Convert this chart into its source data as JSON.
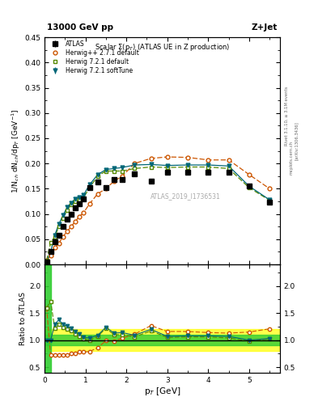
{
  "title_top": "13000 GeV pp",
  "title_right": "Z+Jet",
  "plot_title": "Scalar Σ(p$_T$) (ATLAS UE in Z production)",
  "watermark": "ATLAS_2019_I1736531",
  "ylabel_main": "1/N$_{ch}$ dN$_{ch}$/dp$_T$ [GeV$^{-1}$]",
  "ylabel_ratio": "Ratio to ATLAS",
  "xlabel": "p$_T$ [GeV]",
  "right_label": "Rivet 3.1.10, ≥ 3.1M events",
  "arxiv_label": "[arXiv:1306.3436]",
  "mcplots_label": "mcplots.cern.ch",
  "ylim_main": [
    0.0,
    0.45
  ],
  "xlim": [
    0.0,
    5.75
  ],
  "yticks_main": [
    0.0,
    0.05,
    0.1,
    0.15,
    0.2,
    0.25,
    0.3,
    0.35,
    0.4,
    0.45
  ],
  "ylim_ratio": [
    0.4,
    2.4
  ],
  "yticks_ratio": [
    0.5,
    1.0,
    1.5,
    2.0
  ],
  "atlas_x": [
    0.05,
    0.15,
    0.25,
    0.35,
    0.45,
    0.55,
    0.65,
    0.75,
    0.85,
    0.95,
    1.1,
    1.3,
    1.5,
    1.7,
    1.9,
    2.2,
    2.6,
    3.0,
    3.5,
    4.0,
    4.5,
    5.0,
    5.5
  ],
  "atlas_y": [
    0.005,
    0.025,
    0.045,
    0.058,
    0.075,
    0.09,
    0.1,
    0.112,
    0.12,
    0.13,
    0.152,
    0.163,
    0.152,
    0.168,
    0.168,
    0.18,
    0.165,
    0.183,
    0.182,
    0.182,
    0.183,
    0.155,
    0.124
  ],
  "atlas_yerr": [
    0.002,
    0.003,
    0.003,
    0.003,
    0.003,
    0.003,
    0.003,
    0.003,
    0.003,
    0.003,
    0.003,
    0.003,
    0.003,
    0.003,
    0.003,
    0.003,
    0.003,
    0.003,
    0.003,
    0.003,
    0.003,
    0.003,
    0.003
  ],
  "herwig_pp_x": [
    0.05,
    0.15,
    0.25,
    0.35,
    0.45,
    0.55,
    0.65,
    0.75,
    0.85,
    0.95,
    1.1,
    1.3,
    1.5,
    1.7,
    1.9,
    2.2,
    2.6,
    3.0,
    3.5,
    4.0,
    4.5,
    5.0,
    5.5
  ],
  "herwig_pp_y": [
    0.008,
    0.018,
    0.033,
    0.042,
    0.055,
    0.065,
    0.075,
    0.085,
    0.095,
    0.102,
    0.12,
    0.14,
    0.15,
    0.165,
    0.175,
    0.2,
    0.21,
    0.213,
    0.212,
    0.207,
    0.207,
    0.178,
    0.15
  ],
  "herwig721_x": [
    0.05,
    0.15,
    0.25,
    0.35,
    0.45,
    0.55,
    0.65,
    0.75,
    0.85,
    0.95,
    1.1,
    1.3,
    1.5,
    1.7,
    1.9,
    2.2,
    2.6,
    3.0,
    3.5,
    4.0,
    4.5,
    5.0,
    5.5
  ],
  "herwig721_y": [
    0.008,
    0.043,
    0.055,
    0.075,
    0.092,
    0.108,
    0.118,
    0.125,
    0.128,
    0.132,
    0.152,
    0.175,
    0.185,
    0.185,
    0.185,
    0.19,
    0.193,
    0.192,
    0.193,
    0.193,
    0.19,
    0.152,
    0.127
  ],
  "herwig721s_x": [
    0.05,
    0.15,
    0.25,
    0.35,
    0.45,
    0.55,
    0.65,
    0.75,
    0.85,
    0.95,
    1.1,
    1.3,
    1.5,
    1.7,
    1.9,
    2.2,
    2.6,
    3.0,
    3.5,
    4.0,
    4.5,
    5.0,
    5.5
  ],
  "herwig721s_y": [
    0.005,
    0.025,
    0.058,
    0.08,
    0.097,
    0.113,
    0.122,
    0.13,
    0.133,
    0.137,
    0.158,
    0.178,
    0.188,
    0.19,
    0.192,
    0.197,
    0.198,
    0.196,
    0.197,
    0.197,
    0.195,
    0.155,
    0.128
  ],
  "ratio_pp_y": [
    1.6,
    0.72,
    0.73,
    0.72,
    0.73,
    0.72,
    0.75,
    0.76,
    0.79,
    0.78,
    0.79,
    0.86,
    0.99,
    0.98,
    1.04,
    1.11,
    1.27,
    1.16,
    1.16,
    1.14,
    1.13,
    1.15,
    1.21
  ],
  "ratio_721_y": [
    1.6,
    1.72,
    1.22,
    1.29,
    1.23,
    1.2,
    1.18,
    1.12,
    1.07,
    1.02,
    1.0,
    1.07,
    1.22,
    1.1,
    1.1,
    1.06,
    1.17,
    1.05,
    1.06,
    1.06,
    1.04,
    0.98,
    1.02
  ],
  "ratio_721s_y": [
    1.0,
    1.0,
    1.29,
    1.38,
    1.29,
    1.26,
    1.22,
    1.16,
    1.11,
    1.05,
    1.04,
    1.09,
    1.24,
    1.13,
    1.14,
    1.09,
    1.2,
    1.07,
    1.08,
    1.08,
    1.07,
    1.0,
    1.03
  ],
  "color_atlas": "#000000",
  "color_herwig_pp": "#cc5500",
  "color_herwig721": "#558800",
  "color_herwig721s": "#006677",
  "band_green_lo": 0.9,
  "band_green_hi": 1.1,
  "band_yellow_lo": 0.8,
  "band_yellow_hi": 1.2
}
